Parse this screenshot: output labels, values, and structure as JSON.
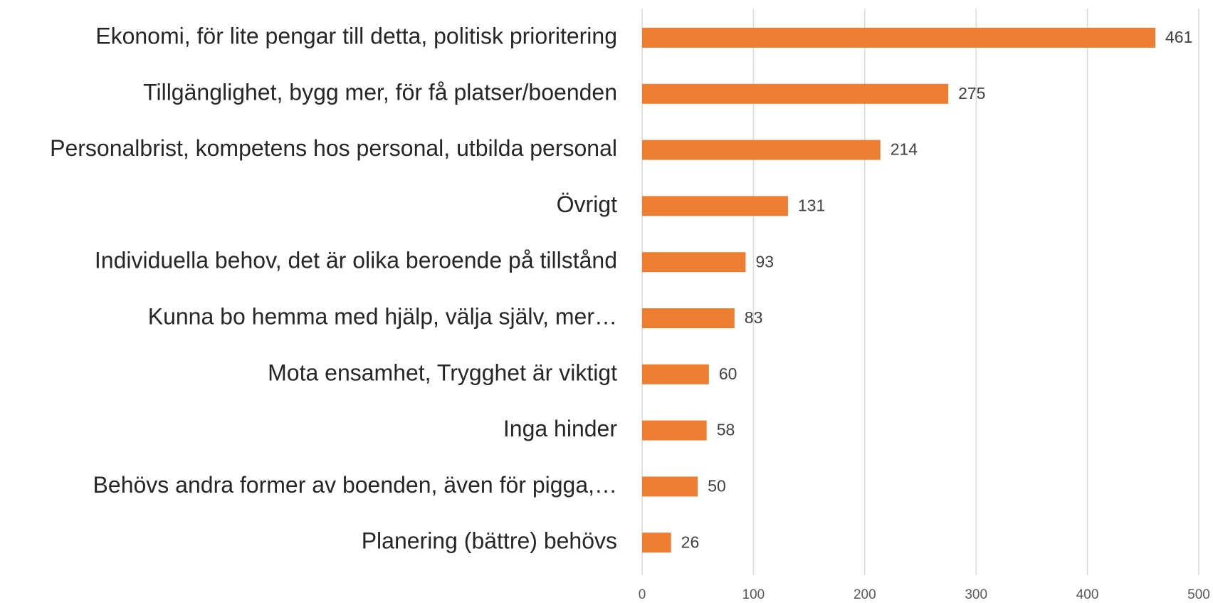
{
  "chart_data": {
    "type": "bar",
    "orientation": "horizontal",
    "categories": [
      "Ekonomi, för lite pengar till detta, politisk prioritering",
      "Tillgänglighet, bygg mer, för få platser/boenden",
      "Personalbrist, kompetens hos personal, utbilda personal",
      "Övrigt",
      "Individuella behov, det är olika beroende på tillstånd",
      "Kunna bo hemma med hjälp, välja själv, mer…",
      "Mota ensamhet, Trygghet är viktigt",
      "Inga hinder",
      "Behövs andra former av boenden, även för pigga,…",
      "Planering (bättre) behövs"
    ],
    "values": [
      461,
      275,
      214,
      131,
      93,
      83,
      60,
      58,
      50,
      26
    ],
    "color": "#ed7d31",
    "xlim": [
      0,
      500
    ],
    "xticks": [
      0,
      100,
      200,
      300,
      400,
      500
    ],
    "grid": true
  }
}
